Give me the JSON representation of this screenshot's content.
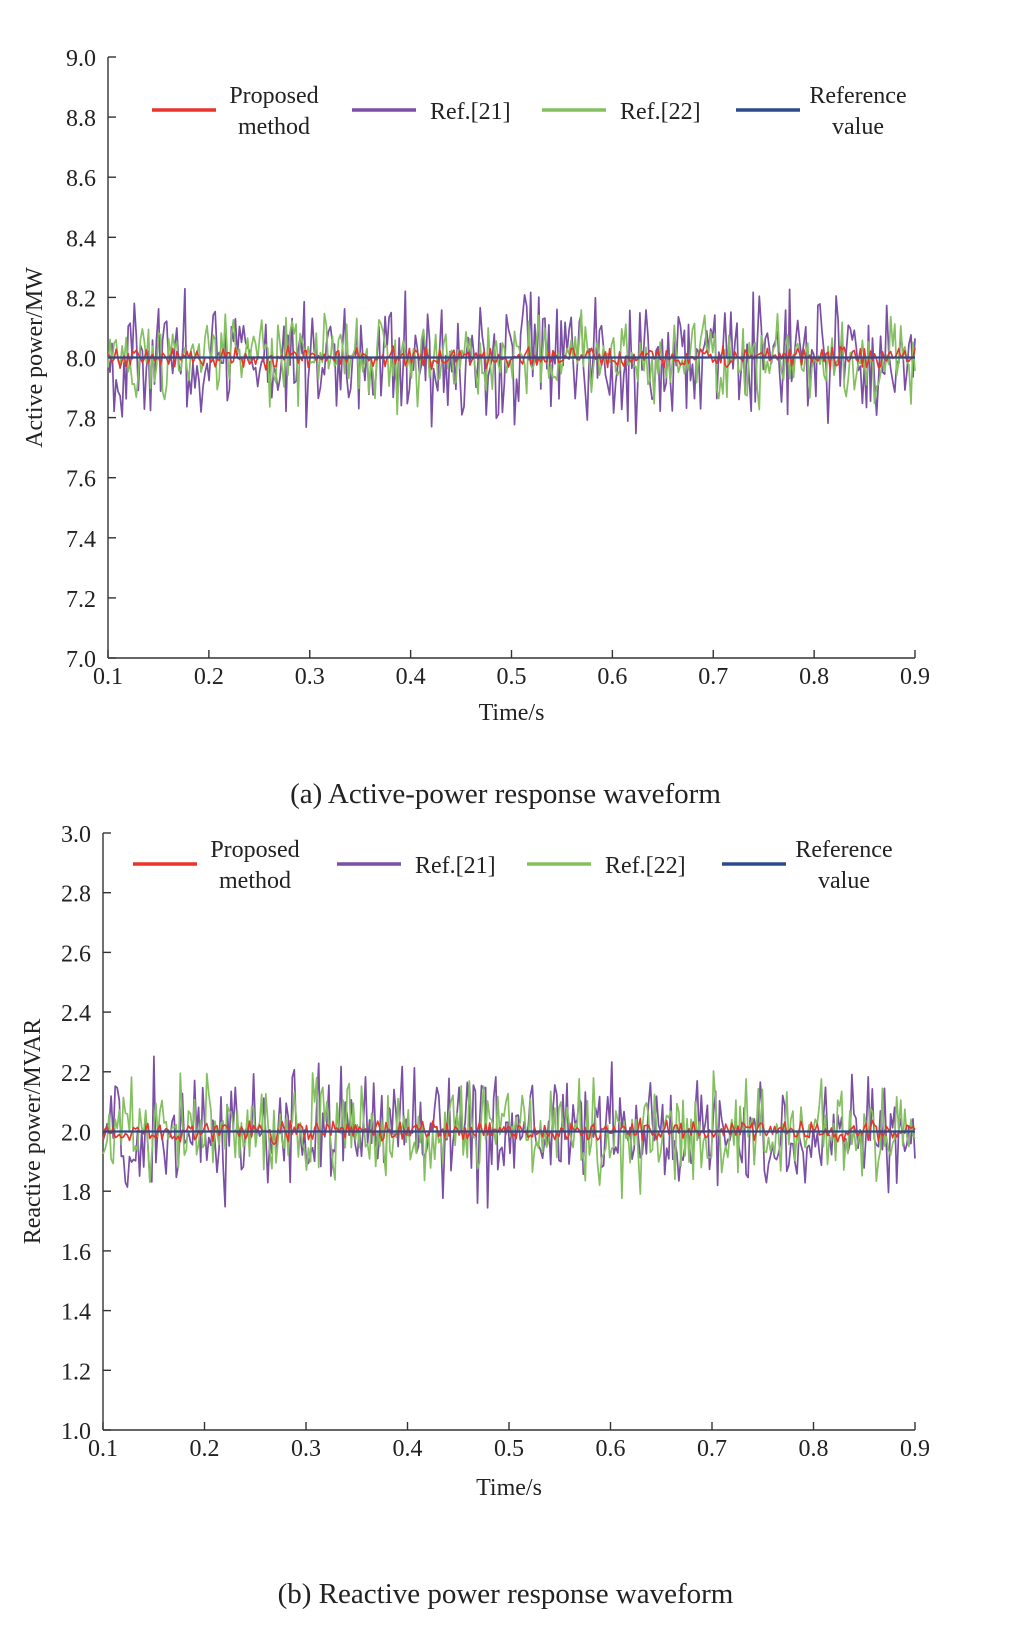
{
  "chart_data": [
    {
      "type": "line",
      "caption": "(a) Active-power response waveform",
      "xlabel": "Time/s",
      "ylabel": "Active power/MW",
      "xlim": [
        0.1,
        0.9
      ],
      "ylim": [
        7.0,
        9.0
      ],
      "xticks": [
        "0.1",
        "0.2",
        "0.3",
        "0.4",
        "0.5",
        "0.6",
        "0.7",
        "0.8",
        "0.9"
      ],
      "yticks": [
        "7.0",
        "7.2",
        "7.4",
        "7.6",
        "7.8",
        "8.0",
        "8.2",
        "8.4",
        "8.6",
        "8.8",
        "9.0"
      ],
      "legend_position": "top",
      "grid": false,
      "series": [
        {
          "name": "Proposed method",
          "color": "#e8342a",
          "center": 8.0,
          "amplitude": 0.05,
          "samples": 400
        },
        {
          "name": "Ref.[21]",
          "color": "#7a4fa5",
          "center": 8.0,
          "amplitude": 0.3,
          "samples": 400
        },
        {
          "name": "Ref.[22]",
          "color": "#84c05f",
          "center": 8.0,
          "amplitude": 0.2,
          "samples": 400
        },
        {
          "name": "Reference value",
          "color": "#2c4a8e",
          "values": [
            8.0,
            8.0
          ]
        }
      ],
      "legend": [
        {
          "lines": [
            "Proposed",
            "method"
          ],
          "color": "#e8342a"
        },
        {
          "lines": [
            "Ref.[21]"
          ],
          "color": "#7a4fa5"
        },
        {
          "lines": [
            "Ref.[22]"
          ],
          "color": "#84c05f"
        },
        {
          "lines": [
            "Reference",
            "value"
          ],
          "color": "#2c4a8e"
        }
      ]
    },
    {
      "type": "line",
      "caption": "(b) Reactive power response waveform",
      "xlabel": "Time/s",
      "ylabel": "Reactive power/MVAR",
      "xlim": [
        0.1,
        0.9
      ],
      "ylim": [
        1.0,
        3.0
      ],
      "xticks": [
        "0.1",
        "0.2",
        "0.3",
        "0.4",
        "0.5",
        "0.6",
        "0.7",
        "0.8",
        "0.9"
      ],
      "yticks": [
        "1.0",
        "1.2",
        "1.4",
        "1.6",
        "1.8",
        "2.0",
        "2.2",
        "2.4",
        "2.6",
        "2.8",
        "3.0"
      ],
      "legend_position": "top",
      "grid": false,
      "series": [
        {
          "name": "Proposed method",
          "color": "#e8342a",
          "center": 2.0,
          "amplitude": 0.05,
          "samples": 400
        },
        {
          "name": "Ref.[21]",
          "color": "#7a4fa5",
          "center": 2.0,
          "amplitude": 0.28,
          "samples": 400
        },
        {
          "name": "Ref.[22]",
          "color": "#84c05f",
          "center": 2.0,
          "amplitude": 0.25,
          "samples": 400
        },
        {
          "name": "Reference value",
          "color": "#2c4a8e",
          "values": [
            2.0,
            2.0
          ]
        }
      ],
      "legend": [
        {
          "lines": [
            "Proposed",
            "method"
          ],
          "color": "#e8342a"
        },
        {
          "lines": [
            "Ref.[21]"
          ],
          "color": "#7a4fa5"
        },
        {
          "lines": [
            "Ref.[22]"
          ],
          "color": "#84c05f"
        },
        {
          "lines": [
            "Reference",
            "value"
          ],
          "color": "#2c4a8e"
        }
      ]
    }
  ]
}
